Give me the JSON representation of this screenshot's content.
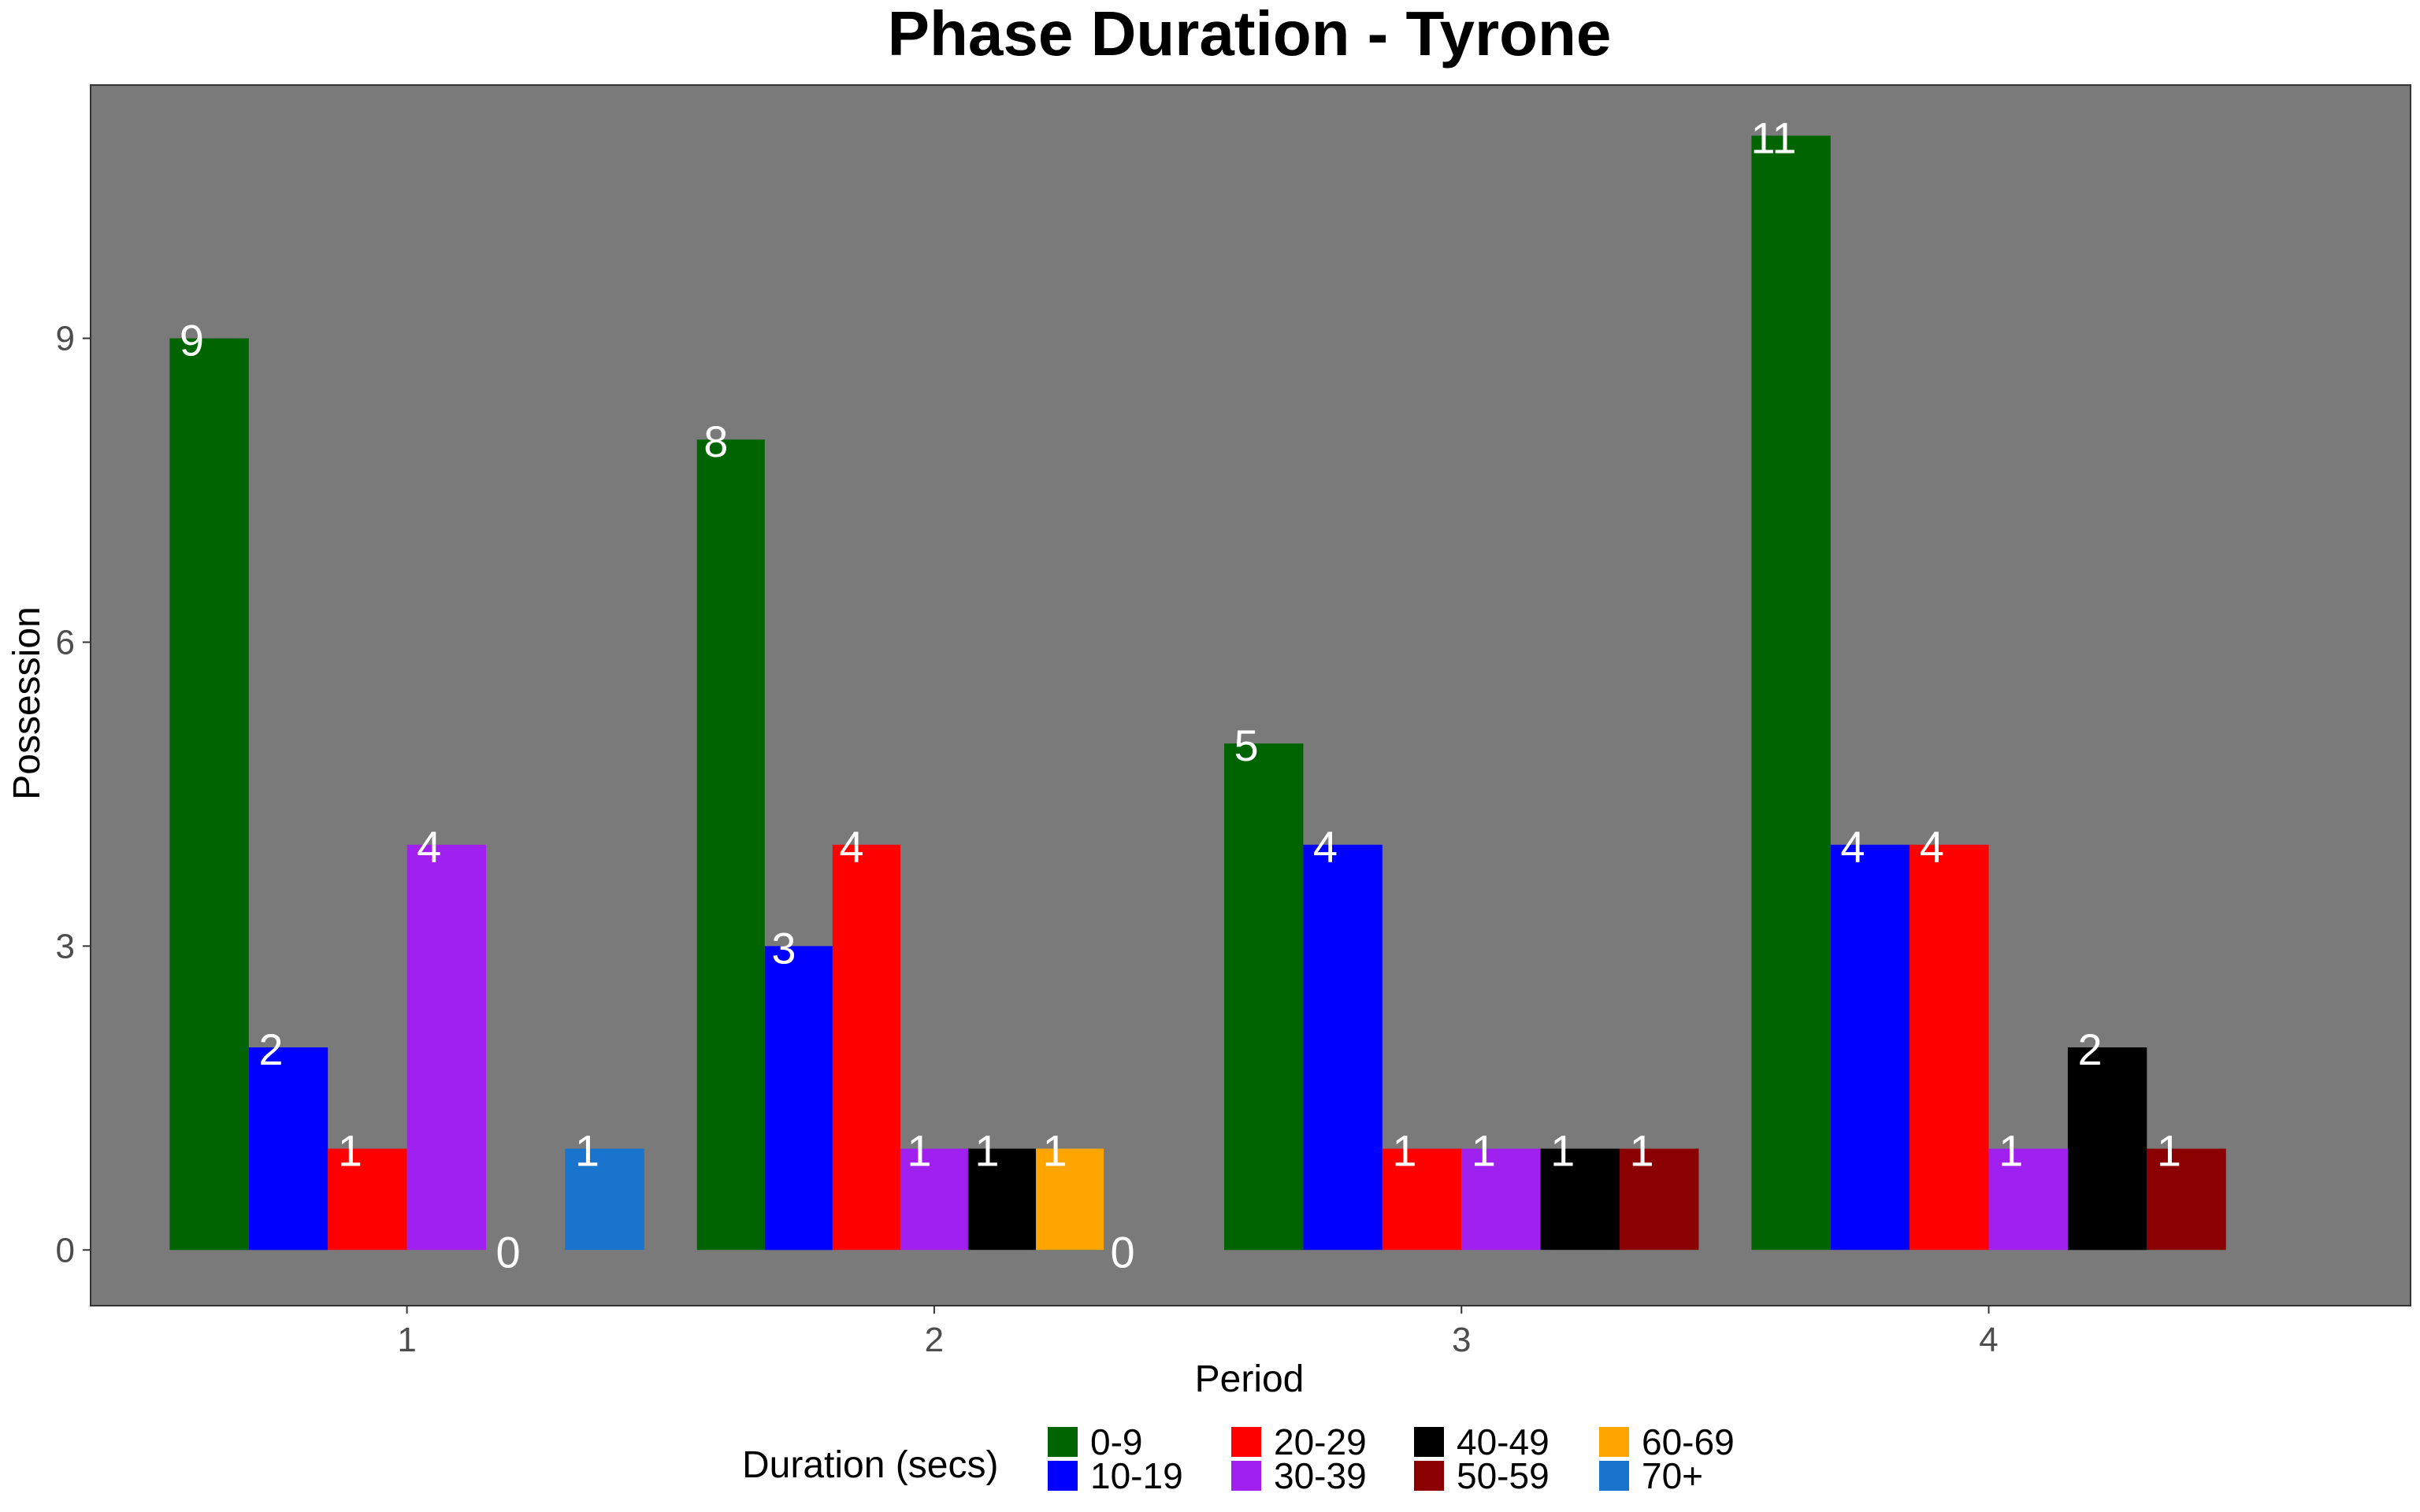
{
  "chart_data": {
    "type": "bar",
    "title": "Phase Duration - Tyrone",
    "xlabel": "Period",
    "ylabel": "Possession",
    "categories": [
      "1",
      "2",
      "3",
      "4"
    ],
    "y_ticks": [
      "0",
      "3",
      "6",
      "9"
    ],
    "ylim": [
      -0.55,
      11.5
    ],
    "grid": false,
    "legend_position": "bottom",
    "legend_title": "Duration (secs)",
    "panel_color": "#7a7a7a",
    "series": [
      {
        "name": "0-9",
        "color": "#006400",
        "values": [
          9,
          8,
          5,
          11
        ]
      },
      {
        "name": "10-19",
        "color": "#0000ff",
        "values": [
          2,
          3,
          4,
          4
        ]
      },
      {
        "name": "20-29",
        "color": "#ff0000",
        "values": [
          1,
          4,
          1,
          4
        ]
      },
      {
        "name": "30-39",
        "color": "#a020f0",
        "values": [
          4,
          1,
          1,
          1
        ]
      },
      {
        "name": "40-49",
        "color": "#000000",
        "values": [
          0,
          1,
          1,
          2
        ]
      },
      {
        "name": "50-59",
        "color": "#8b0000",
        "values": [
          null,
          null,
          1,
          1
        ]
      },
      {
        "name": "60-69",
        "color": "#ffa500",
        "values": [
          null,
          1,
          null,
          null
        ]
      },
      {
        "name": "70+",
        "color": "#1874cd",
        "values": [
          1,
          0,
          null,
          null
        ]
      }
    ]
  }
}
